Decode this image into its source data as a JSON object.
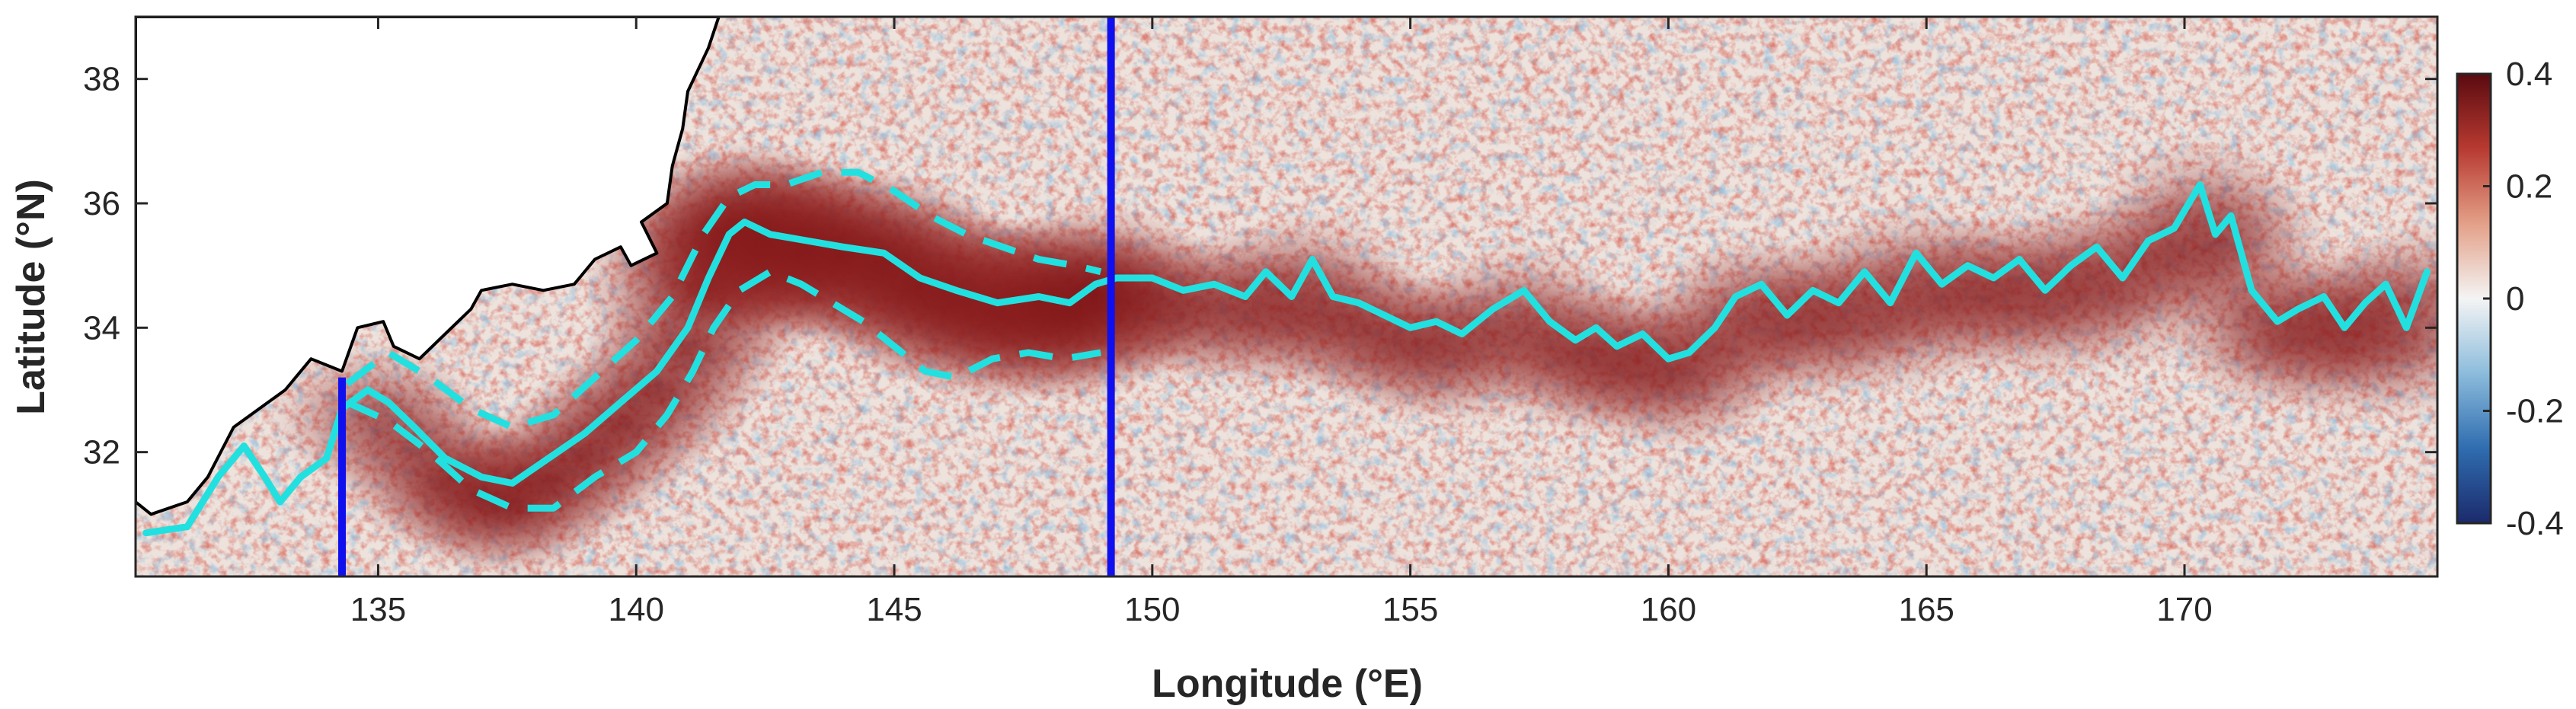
{
  "chart_data": {
    "type": "heatmap",
    "title": "",
    "xlabel": "Longitude (°E)",
    "ylabel": "Latitude (°N)",
    "xlim": [
      130.3,
      174.9
    ],
    "ylim": [
      30.0,
      39.0
    ],
    "xticks": [
      135,
      140,
      145,
      150,
      155,
      160,
      165,
      170
    ],
    "xtick_labels": [
      "135",
      "140",
      "145",
      "150",
      "155",
      "160",
      "165",
      "170"
    ],
    "yticks": [
      32,
      34,
      36,
      38
    ],
    "ytick_labels": [
      "32",
      "34",
      "36",
      "38"
    ],
    "grid": false,
    "colorbar": {
      "range": [
        -0.4,
        0.4
      ],
      "ticks": [
        -0.4,
        -0.2,
        0,
        0.2,
        0.4
      ],
      "tick_labels": [
        "-0.4",
        "-0.2",
        "0",
        "0.2",
        "0.4"
      ],
      "colormap": [
        "#1b2a6b",
        "#2f6db0",
        "#8cbcdc",
        "#f4f4f4",
        "#e3a088",
        "#b83a31",
        "#5a0a10"
      ]
    },
    "field_description_colors": {
      "positive": "#b83a31",
      "negative": "#3f7fb8",
      "neutral": "#f0ece8",
      "land": "#ffffff",
      "coastline": "#000000"
    },
    "series": [
      {
        "type": "line",
        "color": "#22e0e0",
        "style": "solid",
        "x": [
          130.5,
          131.3,
          131.9,
          132.4,
          132.8,
          133.1,
          133.5,
          134.0,
          134.3,
          134.8,
          135.2,
          135.7,
          136.3,
          137.0,
          137.6,
          138.3,
          139.0,
          139.7,
          140.4,
          141.0,
          141.4,
          141.8,
          142.1,
          142.6,
          143.3,
          144.0,
          144.8,
          145.5,
          146.2,
          147.0,
          147.8,
          148.4,
          148.9,
          149.3,
          150.0,
          150.6,
          151.2,
          151.8,
          152.2,
          152.7,
          153.1,
          153.5,
          154.0,
          154.5,
          155.0,
          155.5,
          156.0,
          156.6,
          157.2,
          157.7,
          158.2,
          158.6,
          159.0,
          159.5,
          160.0,
          160.4,
          160.9,
          161.3,
          161.8,
          162.3,
          162.8,
          163.3,
          163.8,
          164.3,
          164.8,
          165.3,
          165.8,
          166.3,
          166.8,
          167.3,
          167.8,
          168.3,
          168.8,
          169.3,
          169.8,
          170.3,
          170.6,
          170.9,
          171.3,
          171.8,
          172.2,
          172.7,
          173.1,
          173.5,
          173.9,
          174.3,
          174.7
        ],
        "y": [
          30.7,
          30.8,
          31.6,
          32.1,
          31.6,
          31.2,
          31.6,
          31.9,
          32.7,
          33.0,
          32.8,
          32.4,
          31.9,
          31.6,
          31.5,
          31.9,
          32.3,
          32.8,
          33.3,
          34.0,
          34.8,
          35.5,
          35.7,
          35.5,
          35.4,
          35.3,
          35.2,
          34.8,
          34.6,
          34.4,
          34.5,
          34.4,
          34.7,
          34.8,
          34.8,
          34.6,
          34.7,
          34.5,
          34.9,
          34.5,
          35.1,
          34.5,
          34.4,
          34.2,
          34.0,
          34.1,
          33.9,
          34.3,
          34.6,
          34.1,
          33.8,
          34.0,
          33.7,
          33.9,
          33.5,
          33.6,
          34.0,
          34.5,
          34.7,
          34.2,
          34.6,
          34.4,
          34.9,
          34.4,
          35.2,
          34.7,
          35.0,
          34.8,
          35.1,
          34.6,
          35.0,
          35.3,
          34.8,
          35.4,
          35.6,
          36.3,
          35.5,
          35.8,
          34.6,
          34.1,
          34.3,
          34.5,
          34.0,
          34.4,
          34.7,
          34.0,
          34.9
        ]
      },
      {
        "type": "line",
        "color": "#22e0e0",
        "style": "dashed",
        "x": [
          134.4,
          135.2,
          136.0,
          136.8,
          137.6,
          138.4,
          139.2,
          140.0,
          140.7,
          141.3,
          141.8,
          142.3,
          142.9,
          143.6,
          144.3,
          145.0,
          145.7,
          146.4,
          147.1,
          147.8,
          148.5,
          149.0
        ],
        "y": [
          33.1,
          33.6,
          33.2,
          32.7,
          32.4,
          32.6,
          33.2,
          33.8,
          34.5,
          35.5,
          36.1,
          36.3,
          36.3,
          36.5,
          36.5,
          36.2,
          35.8,
          35.5,
          35.3,
          35.1,
          35.0,
          34.9
        ]
      },
      {
        "type": "line",
        "color": "#22e0e0",
        "style": "dashed",
        "x": [
          134.4,
          135.2,
          136.0,
          136.8,
          137.6,
          138.4,
          139.2,
          140.0,
          140.6,
          141.1,
          141.5,
          142.0,
          142.6,
          143.2,
          143.8,
          144.4,
          145.0,
          145.6,
          146.2,
          146.9,
          147.6,
          148.3,
          149.0
        ],
        "y": [
          32.8,
          32.5,
          32.0,
          31.4,
          31.1,
          31.1,
          31.6,
          32.0,
          32.6,
          33.3,
          34.0,
          34.6,
          34.9,
          34.7,
          34.4,
          34.1,
          33.7,
          33.3,
          33.2,
          33.5,
          33.6,
          33.5,
          33.6
        ]
      }
    ],
    "vertical_lines": [
      {
        "x": 134.3,
        "ymax": 33.2,
        "color": "#1010ee"
      },
      {
        "x": 149.2,
        "ymax": 39.0,
        "color": "#1010ee"
      }
    ]
  }
}
